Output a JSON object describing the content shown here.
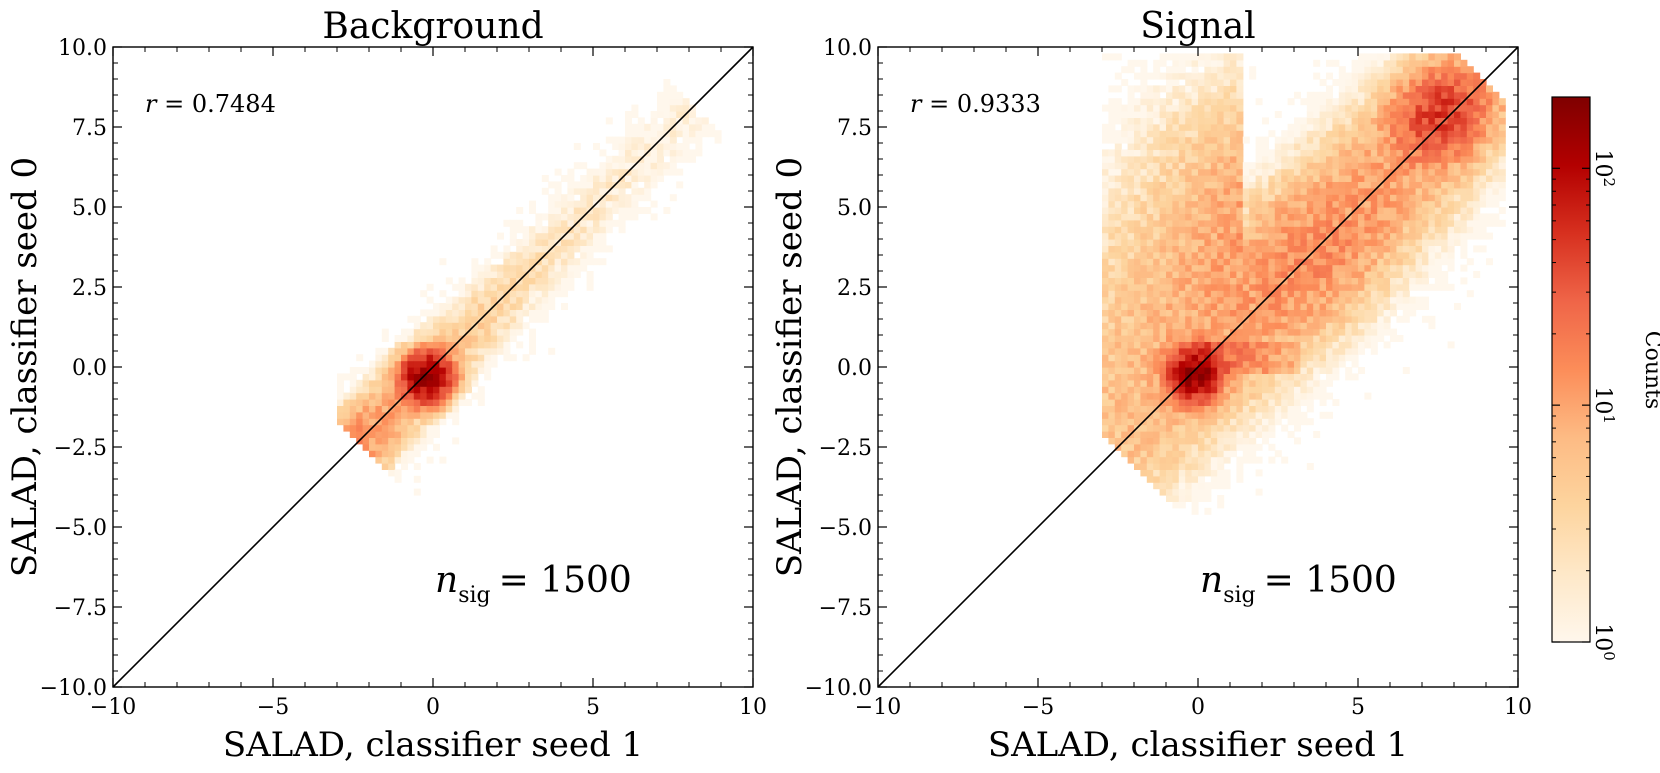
{
  "chart_data": [
    {
      "type": "heatmap",
      "title": "Background",
      "xlabel": "SALAD, classifier seed 1",
      "ylabel": "SALAD, classifier seed 0",
      "xlim": [
        -10,
        10
      ],
      "ylim": [
        -10,
        10
      ],
      "xticks": [
        -10,
        -5,
        0,
        5,
        10
      ],
      "yticks": [
        -10.0,
        -7.5,
        -5.0,
        -2.5,
        0.0,
        2.5,
        5.0,
        7.5,
        10.0
      ],
      "xtick_labels": [
        "−10",
        "−5",
        "0",
        "5",
        "10"
      ],
      "ytick_labels": [
        "−10.0",
        "−7.5",
        "−5.0",
        "−2.5",
        "0.0",
        "2.5",
        "5.0",
        "7.5",
        "10.0"
      ],
      "annotation_r": {
        "symbol": "r",
        "value": "= 0.7484"
      },
      "annotation_n": {
        "symbol": "n",
        "sub": "sig",
        "value": "= 1500"
      },
      "diagonal_line": [
        [
          -10,
          -10
        ],
        [
          10,
          10
        ]
      ],
      "distribution": {
        "core_center": [
          -0.2,
          -0.3
        ],
        "core_peak_counts": 150,
        "along_diagonal_range": [
          -2.3,
          8.2
        ],
        "spread": 0.8
      }
    },
    {
      "type": "heatmap",
      "title": "Signal",
      "xlabel": "SALAD, classifier seed 1",
      "ylabel": "SALAD, classifier seed 0",
      "xlim": [
        -10,
        10
      ],
      "ylim": [
        -10,
        10
      ],
      "xticks": [
        -10,
        -5,
        0,
        5,
        10
      ],
      "yticks": [
        -10.0,
        -7.5,
        -5.0,
        -2.5,
        0.0,
        2.5,
        5.0,
        7.5,
        10.0
      ],
      "xtick_labels": [
        "−10",
        "−5",
        "0",
        "5",
        "10"
      ],
      "ytick_labels": [
        "−10.0",
        "−7.5",
        "−5.0",
        "−2.5",
        "0.0",
        "2.5",
        "5.0",
        "7.5",
        "10.0"
      ],
      "annotation_r": {
        "symbol": "r",
        "value": "= 0.9333"
      },
      "annotation_n": {
        "symbol": "n",
        "sub": "sig",
        "value": "= 1500"
      },
      "diagonal_line": [
        [
          -10,
          -10
        ],
        [
          10,
          10
        ]
      ],
      "distribution": {
        "core_center": [
          -0.1,
          -0.2
        ],
        "core_peak_counts": 150,
        "along_diagonal_range": [
          -2.5,
          9.0
        ],
        "spread": 1.3,
        "upper_ridge_center": [
          7.5,
          8.0
        ]
      }
    }
  ],
  "colorbar": {
    "label": "Counts",
    "scale": "log",
    "min": 1,
    "max": 200,
    "ticks": [
      {
        "value": 1,
        "base": "10",
        "exp": "0"
      },
      {
        "value": 10,
        "base": "10",
        "exp": "1"
      },
      {
        "value": 100,
        "base": "10",
        "exp": "2"
      }
    ],
    "colormap": "OrRd",
    "colors": [
      "#fff7ec",
      "#fee8c8",
      "#fdd49e",
      "#fdbb84",
      "#fc8d59",
      "#ef6548",
      "#d7301f",
      "#b30000",
      "#7f0000"
    ]
  }
}
